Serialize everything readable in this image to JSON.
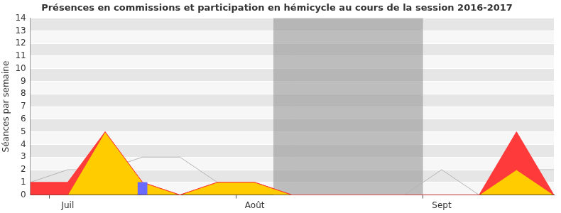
{
  "chart_data": {
    "type": "line",
    "title": "Présences en commissions et participation en hémicycle au cours de la session 2016-2017",
    "y_label": "Séances par semaine",
    "categories": [
      null,
      "Juil",
      null,
      null,
      null,
      null,
      "Août",
      null,
      null,
      null,
      null,
      "Sept",
      null,
      null,
      null
    ],
    "series": [
      {
        "type": "line",
        "color": "#b4b4b4",
        "values": [
          1,
          2,
          2,
          3,
          3,
          1,
          1,
          0,
          0,
          0,
          0,
          2,
          0,
          2,
          2
        ]
      },
      {
        "type": "area",
        "color": "#ff3a3a",
        "values": [
          1,
          1,
          5,
          1,
          0,
          1,
          1,
          0,
          0,
          0,
          0,
          0,
          0,
          5,
          0
        ]
      },
      {
        "type": "area",
        "color": "#ffcc00",
        "values": [
          0,
          0,
          5,
          1,
          0,
          1,
          1,
          0,
          0,
          0,
          0,
          0,
          0,
          2,
          0
        ]
      },
      {
        "type": "bar",
        "color": "#6a6aff",
        "values": [
          null,
          null,
          null,
          1,
          null,
          null,
          null,
          null,
          null,
          null,
          null,
          null,
          null,
          null,
          null
        ]
      }
    ],
    "shaded_range": [
      6.5,
      10.5
    ],
    "ylim": [
      0,
      14
    ],
    "yticks": [
      0,
      1,
      2,
      3,
      4,
      5,
      6,
      7,
      8,
      9,
      10,
      11,
      12,
      13,
      14
    ],
    "grid": true
  }
}
